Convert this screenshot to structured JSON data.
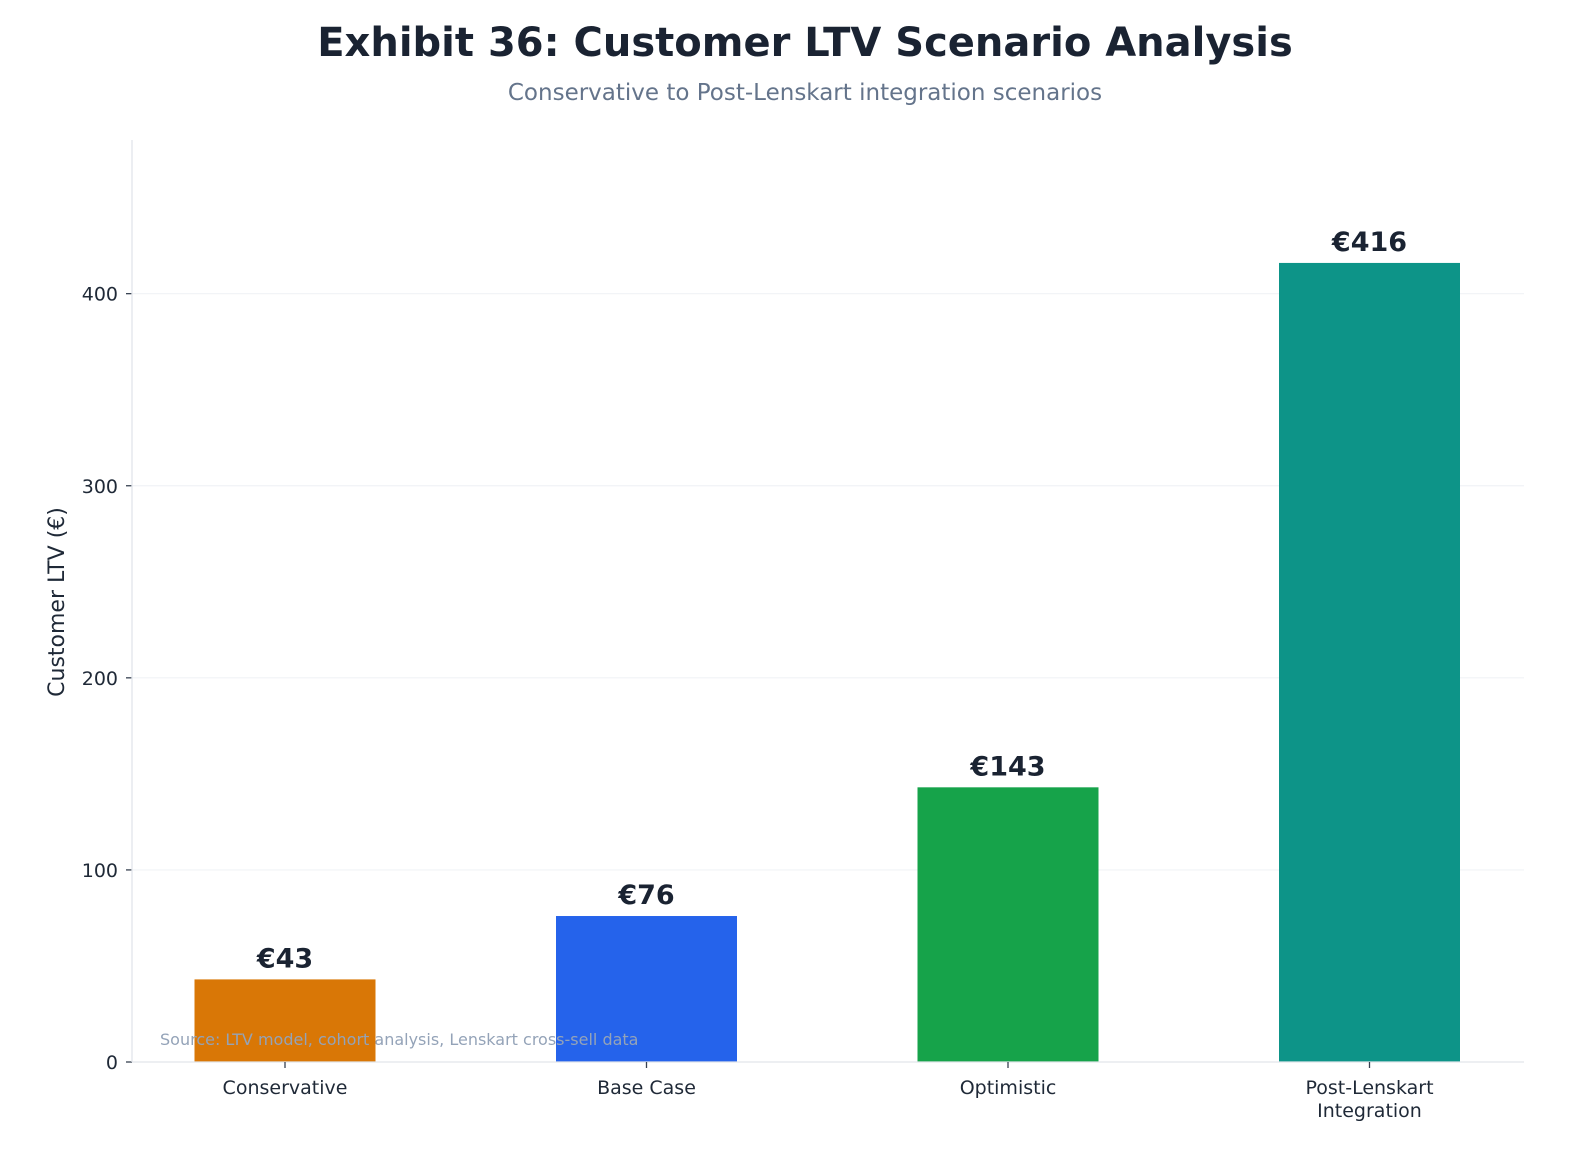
{
  "chart_data": {
    "type": "bar",
    "title": "Exhibit 36: Customer LTV Scenario Analysis",
    "subtitle": "Conservative to Post-Lenskart integration scenarios",
    "categories": [
      "Conservative",
      "Base Case",
      "Optimistic",
      "Post-Lenskart\nIntegration"
    ],
    "values": [
      43,
      76,
      143,
      416
    ],
    "data_labels": [
      "€43",
      "€76",
      "€143",
      "€416"
    ],
    "colors": [
      "#D97706",
      "#2563EB",
      "#16A34A",
      "#0D9488"
    ],
    "xlabel": "",
    "ylabel": "Customer LTV (€)",
    "ylim": [
      0,
      480
    ],
    "yticks": [
      0,
      100,
      200,
      300,
      400
    ],
    "grid": "y",
    "source": "Source: LTV model, cohort analysis, Lenskart cross-sell data"
  }
}
